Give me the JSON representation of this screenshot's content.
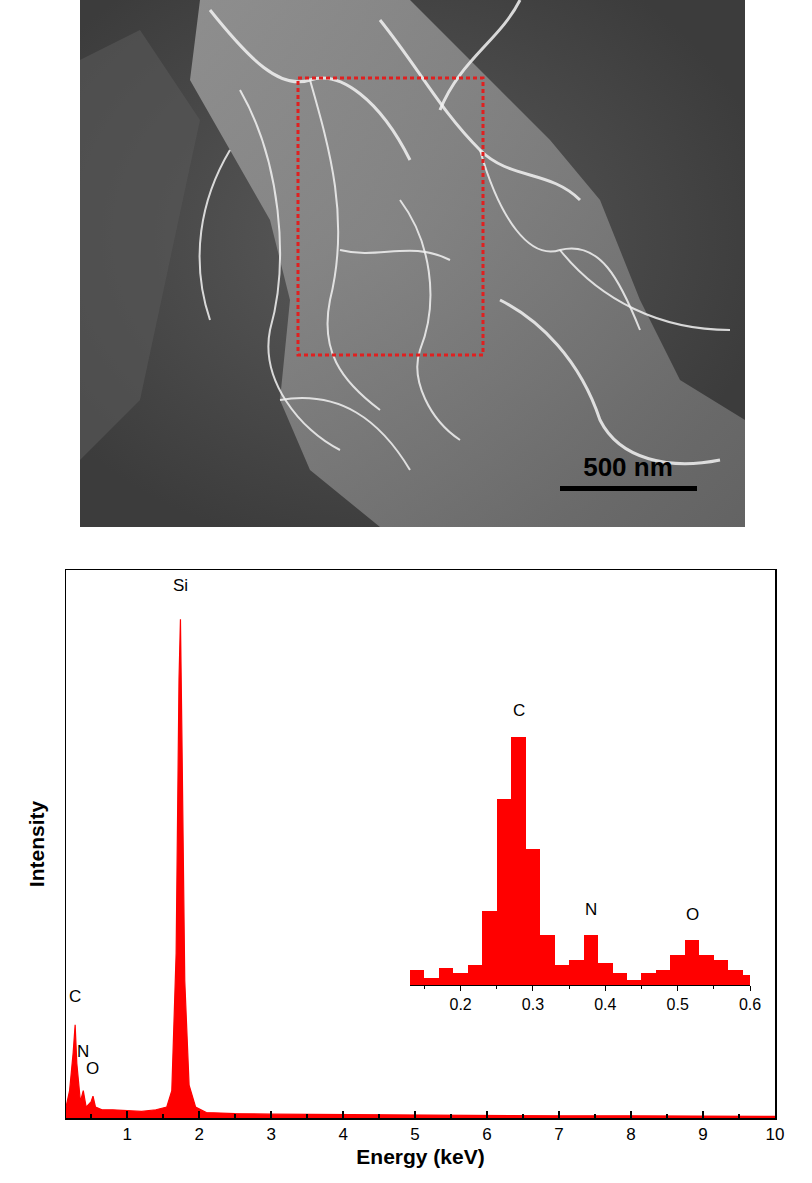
{
  "micrograph": {
    "scale_bar": "500 nm"
  },
  "chart_data": [
    {
      "type": "area",
      "x_label": "Energy (keV)",
      "y_label": "Intensity",
      "x": [
        0.15,
        0.2,
        0.25,
        0.277,
        0.3,
        0.35,
        0.39,
        0.43,
        0.5,
        0.525,
        0.56,
        0.65,
        0.8,
        1.0,
        1.2,
        1.4,
        1.55,
        1.62,
        1.68,
        1.72,
        1.74,
        1.76,
        1.8,
        1.86,
        1.95,
        2.1,
        2.5,
        3,
        4,
        5,
        6,
        7,
        8,
        9,
        10
      ],
      "values": [
        2,
        5,
        12,
        17,
        10,
        3,
        5,
        2,
        3,
        4,
        2,
        1.5,
        1.5,
        1.3,
        1.2,
        1.5,
        2,
        5,
        30,
        80,
        91,
        70,
        25,
        6,
        2,
        1,
        0.8,
        0.7,
        0.6,
        0.5,
        0.5,
        0.4,
        0.4,
        0.4,
        0.3
      ],
      "color": "#ff0000",
      "xlim": [
        0.15,
        10
      ],
      "xticks": [
        1,
        2,
        3,
        4,
        5,
        6,
        7,
        8,
        9,
        10
      ],
      "ylim": [
        0,
        100
      ],
      "tick_labels": "x",
      "annotations": [
        {
          "text": "Si",
          "x": 1.74,
          "y": 95
        },
        {
          "text": "C",
          "x": 0.277,
          "y": 20
        },
        {
          "text": "N",
          "x": 0.39,
          "y": 10
        },
        {
          "text": "O",
          "x": 0.525,
          "y": 7
        }
      ]
    },
    {
      "type": "bar",
      "x": [
        0.14,
        0.16,
        0.18,
        0.2,
        0.22,
        0.24,
        0.26,
        0.28,
        0.3,
        0.32,
        0.34,
        0.36,
        0.38,
        0.4,
        0.42,
        0.44,
        0.46,
        0.48,
        0.5,
        0.52,
        0.54,
        0.56,
        0.58,
        0.6
      ],
      "values": [
        6,
        3,
        7,
        5,
        8,
        30,
        75,
        100,
        55,
        20,
        8,
        10,
        20,
        9,
        5,
        2,
        5,
        6,
        12,
        18,
        12,
        10,
        6,
        4
      ],
      "color": "#ff0000",
      "xlim": [
        0.13,
        0.6
      ],
      "xticks": [
        0.2,
        0.3,
        0.4,
        0.5,
        0.6
      ],
      "ylim": [
        0,
        115
      ],
      "tick_labels": "x",
      "annotations": [
        {
          "text": "C",
          "x": 0.28,
          "y": 106
        },
        {
          "text": "N",
          "x": 0.38,
          "y": 26
        },
        {
          "text": "O",
          "x": 0.52,
          "y": 24
        }
      ]
    }
  ]
}
